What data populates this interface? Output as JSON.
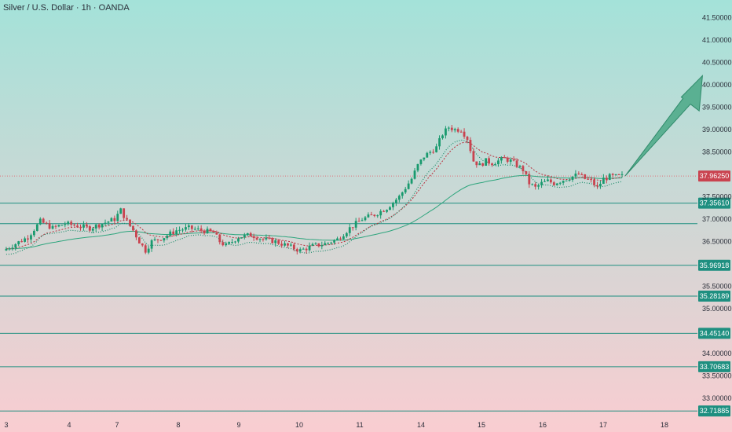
{
  "header": {
    "title": "Silver / U.S. Dollar · 1h · OANDA"
  },
  "colors": {
    "bg_top": "#a4e2d9",
    "bg_bottom": "#f9cdd1",
    "up_candle": "#199a6e",
    "down_candle": "#c9434f",
    "level_line": "#1e8f80",
    "level_tag": "#1e8f80",
    "ema_fast": "#b8303d",
    "ema_slow": "#1f8d6c",
    "ema_long": "#2ea57d",
    "arrow": "#4aa886",
    "current_price_line": "#e0707a"
  },
  "chart_data": {
    "type": "candlestick",
    "title": "Silver / U.S. Dollar · 1h · OANDA",
    "x_tick_labels": [
      "3",
      "4",
      "7",
      "8",
      "9",
      "10",
      "11",
      "14",
      "15",
      "16",
      "17",
      "18"
    ],
    "y_tick_labels": [
      "41.50000",
      "41.00000",
      "40.50000",
      "40.00000",
      "39.50000",
      "39.00000",
      "38.50000",
      "37.50000",
      "37.00000",
      "36.50000",
      "35.50000",
      "35.00000",
      "34.00000",
      "33.50000",
      "33.00000"
    ],
    "ylim": [
      32.6,
      41.75
    ],
    "current_price": "37.96250",
    "horizontal_levels": [
      {
        "label": "37.35610",
        "value": 37.3561,
        "tagged": true
      },
      {
        "label": "",
        "value": 36.9,
        "tagged": false
      },
      {
        "label": "35.96918",
        "value": 35.96918,
        "tagged": true
      },
      {
        "label": "35.28189",
        "value": 35.28189,
        "tagged": true
      },
      {
        "label": "34.45140",
        "value": 34.4514,
        "tagged": true
      },
      {
        "label": "33.70683",
        "value": 33.70683,
        "tagged": true
      },
      {
        "label": "32.71885",
        "value": 32.71885,
        "tagged": true
      }
    ],
    "price_path": [
      [
        0,
        36.3
      ],
      [
        2,
        36.45
      ],
      [
        4,
        36.6
      ],
      [
        6,
        36.95
      ],
      [
        8,
        36.8
      ],
      [
        10,
        36.9
      ],
      [
        12,
        36.85
      ],
      [
        14,
        36.8
      ],
      [
        16,
        36.9
      ],
      [
        18,
        37.0
      ],
      [
        19,
        37.2
      ],
      [
        20,
        36.95
      ],
      [
        21,
        36.75
      ],
      [
        22,
        36.5
      ],
      [
        23,
        36.3
      ],
      [
        24,
        36.5
      ],
      [
        26,
        36.6
      ],
      [
        28,
        36.75
      ],
      [
        30,
        36.8
      ],
      [
        32,
        36.75
      ],
      [
        34,
        36.7
      ],
      [
        35,
        36.5
      ],
      [
        36,
        36.4
      ],
      [
        38,
        36.6
      ],
      [
        40,
        36.65
      ],
      [
        42,
        36.55
      ],
      [
        44,
        36.5
      ],
      [
        46,
        36.4
      ],
      [
        48,
        36.3
      ],
      [
        50,
        36.4
      ],
      [
        52,
        36.45
      ],
      [
        54,
        36.55
      ],
      [
        56,
        36.8
      ],
      [
        58,
        37.0
      ],
      [
        60,
        37.1
      ],
      [
        62,
        37.25
      ],
      [
        64,
        37.5
      ],
      [
        65,
        37.7
      ],
      [
        66,
        37.9
      ],
      [
        67,
        38.2
      ],
      [
        68,
        38.4
      ],
      [
        70,
        38.6
      ],
      [
        71,
        38.9
      ],
      [
        72,
        39.05
      ],
      [
        73,
        39.0
      ],
      [
        74,
        39.0
      ],
      [
        75,
        38.8
      ],
      [
        76,
        38.3
      ],
      [
        77,
        38.2
      ],
      [
        78,
        38.3
      ],
      [
        79,
        38.25
      ],
      [
        80,
        38.3
      ],
      [
        81,
        38.35
      ],
      [
        82,
        38.3
      ],
      [
        83,
        38.2
      ],
      [
        84,
        38.1
      ],
      [
        85,
        37.8
      ],
      [
        86,
        37.7
      ],
      [
        87,
        37.8
      ],
      [
        88,
        37.85
      ],
      [
        89,
        37.8
      ],
      [
        90,
        37.85
      ],
      [
        91,
        37.9
      ],
      [
        92,
        37.95
      ],
      [
        93,
        38.0
      ],
      [
        94,
        37.9
      ],
      [
        95,
        37.85
      ],
      [
        96,
        37.7
      ],
      [
        97,
        37.9
      ],
      [
        98,
        37.95
      ],
      [
        99,
        37.95
      ],
      [
        100,
        37.96
      ]
    ],
    "arrow_target": {
      "x": 113,
      "y": 40.2
    }
  }
}
